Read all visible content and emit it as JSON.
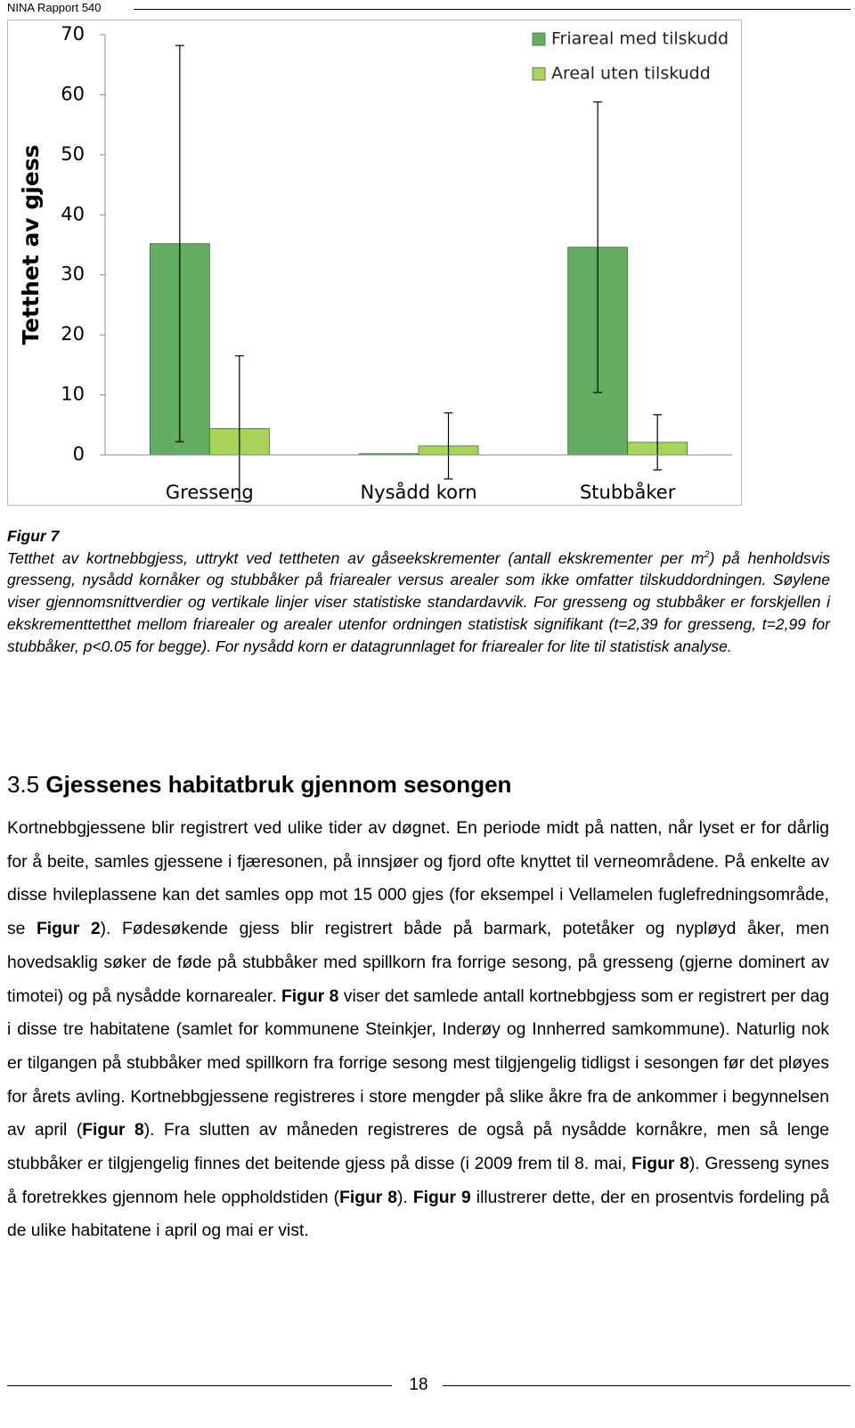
{
  "header": {
    "title": "NINA Rapport 540"
  },
  "chart_data": {
    "type": "bar",
    "ylabel": "Tetthet av gjess",
    "categories": [
      "Gresseng",
      "Nysådd korn",
      "Stubbåker"
    ],
    "series": [
      {
        "name": "Friareal med tilskudd",
        "color": "#63ae62",
        "values": [
          35.2,
          0.2,
          34.6
        ],
        "errors": [
          33.0,
          null,
          24.2
        ]
      },
      {
        "name": "Areal uten tilskudd",
        "color": "#a9d45a",
        "values": [
          4.4,
          1.5,
          2.1
        ],
        "errors": [
          12.1,
          5.5,
          4.6
        ]
      }
    ],
    "ylim": [
      0,
      70
    ],
    "yticks": [
      0,
      10,
      20,
      30,
      40,
      50,
      60,
      70
    ],
    "grid": false,
    "legend": "top-right"
  },
  "caption": {
    "label": "Figur 7",
    "text_before": "Tetthet av kortnebbgjess, uttrykt ved tettheten av gåseekskrementer (antall ekskrementer per m",
    "superscript": "2",
    "text_after": ") på henholdsvis gresseng, nysådd kornåker og stubbåker på friarealer versus arealer som ikke omfatter tilskuddordningen. Søylene viser gjennomsnittverdier og vertikale linjer viser statistiske standardavvik. For gresseng og stubbåker er forskjellen i ekskrementtetthet mellom friarealer og arealer utenfor ordningen statistisk signifikant (t=2,39 for gresseng, t=2,99 for stubbåker, p<0.05 for begge). For nysådd korn er datagrunnlaget for friarealer for lite til statistisk analyse."
  },
  "section": {
    "number": "3.5",
    "title": "Gjessenes habitatbruk gjennom sesongen",
    "paragraph": [
      {
        "text": "Kortnebbgjessene blir registrert ved ulike tider av døgnet. En periode midt på natten, når lyset er for dårlig for å beite, samles gjessene i fjæresonen, på innsjøer og fjord ofte knyttet til verne­områdene. På enkelte av disse hvileplassene kan det samles opp mot 15 000 gjes (for eksempel i Vellamelen fuglefredningsområde, se ",
        "bold": false
      },
      {
        "text": "Figur 2",
        "bold": true
      },
      {
        "text": "). Fødesøkende gjess blir registrert både på barmark, potetåker og nypløyd åker, men hovedsaklig søker de føde på stubbåker med spillkorn fra forrige sesong, på gresseng (gjerne dominert av timotei) og på nysådde korn­arealer. ",
        "bold": false
      },
      {
        "text": "Figur 8",
        "bold": true
      },
      {
        "text": " viser det samlede antall kortnebbgjess som er registrert per dag i disse tre habitatene (samlet for kommunene Steinkjer, Inderøy og Innherred samkommune). Naturlig nok er tilgangen på stubbåker med spillkorn fra forrige sesong mest tilgjengelig tidligst i sesongen før det pløyes for årets avling. Kortnebbgjessene registreres i store mengder på slike åkre fra de ankommer i begynnelsen av april (",
        "bold": false
      },
      {
        "text": "Figur 8",
        "bold": true
      },
      {
        "text": "). Fra slutten av måneden registreres de også på nysådde kornåkre, men så lenge stubbåker er tilgjengelig finnes det beitende gjess på disse (i 2009 frem til 8. mai, ",
        "bold": false
      },
      {
        "text": "Figur 8",
        "bold": true
      },
      {
        "text": "). Gresseng synes å foretrekkes gjennom hele oppholds­tiden (",
        "bold": false
      },
      {
        "text": "Figur 8",
        "bold": true
      },
      {
        "text": "). ",
        "bold": false
      },
      {
        "text": "Figur 9",
        "bold": true
      },
      {
        "text": " illustrerer dette, der en prosentvis fordeling på de ulike habitatene i april og mai er vist.",
        "bold": false
      }
    ]
  },
  "footer": {
    "page": "18"
  }
}
